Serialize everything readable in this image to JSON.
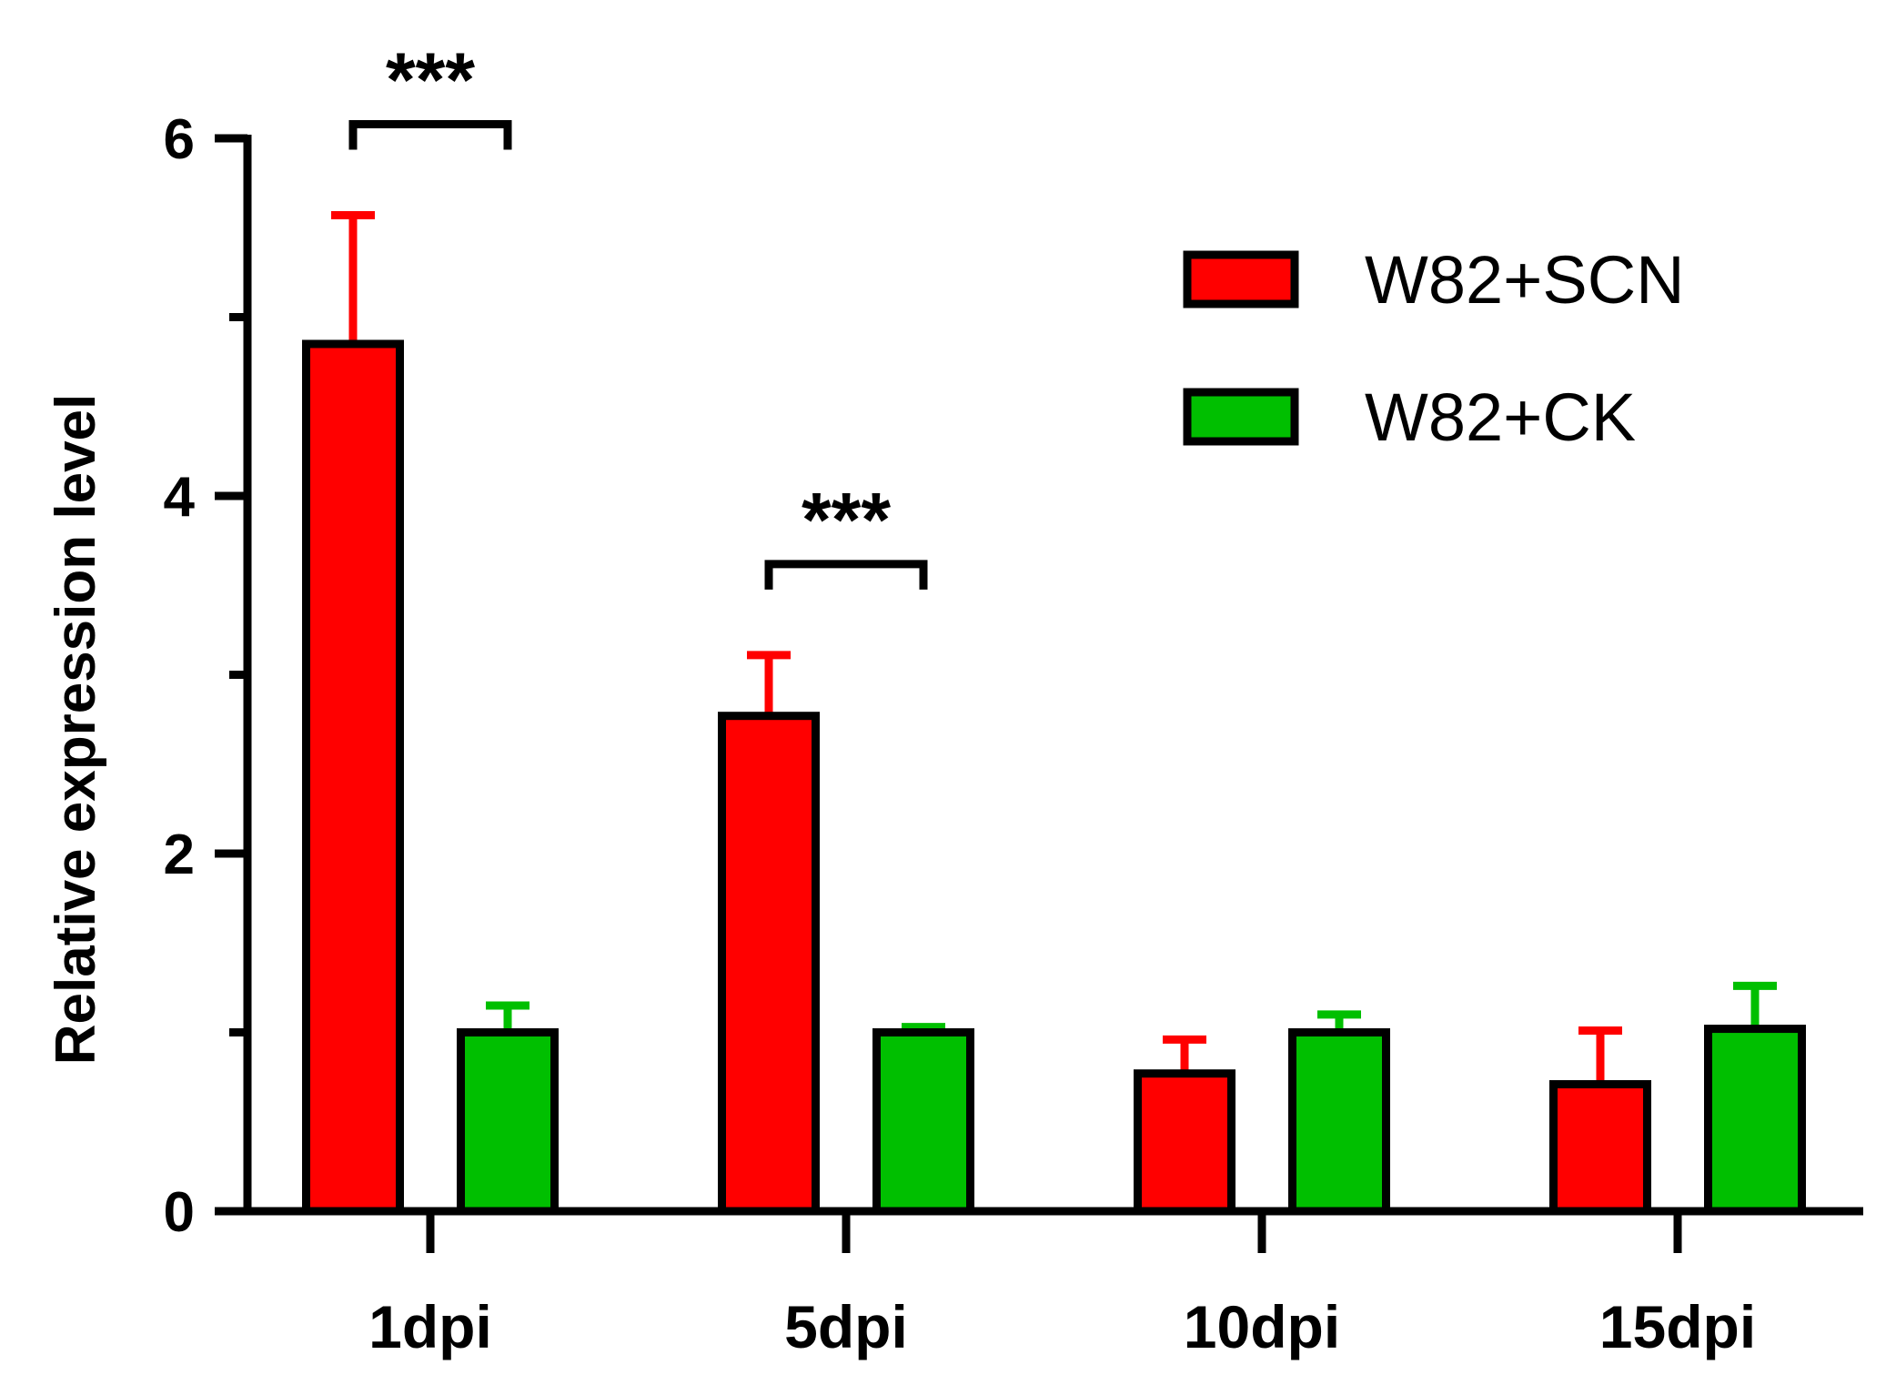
{
  "chart_data": {
    "type": "bar",
    "title": "",
    "xlabel": "",
    "ylabel": "Relative expression level",
    "categories": [
      "1dpi",
      "5dpi",
      "10dpi",
      "15dpi"
    ],
    "ylim": [
      0,
      6
    ],
    "yticks": [
      0,
      2,
      4,
      6
    ],
    "legend_position": "top-right",
    "grid": false,
    "series": [
      {
        "name": "W82+SCN",
        "color": "#ff0000",
        "values": [
          4.85,
          2.77,
          0.77,
          0.71
        ],
        "errors": [
          0.72,
          0.34,
          0.19,
          0.3
        ]
      },
      {
        "name": "W82+CK",
        "color": "#00bf00",
        "values": [
          1.0,
          1.0,
          1.0,
          1.02
        ],
        "errors": [
          0.15,
          0.03,
          0.1,
          0.24
        ]
      }
    ],
    "significance": [
      {
        "category": "1dpi",
        "label": "***"
      },
      {
        "category": "5dpi",
        "label": "***"
      }
    ]
  }
}
